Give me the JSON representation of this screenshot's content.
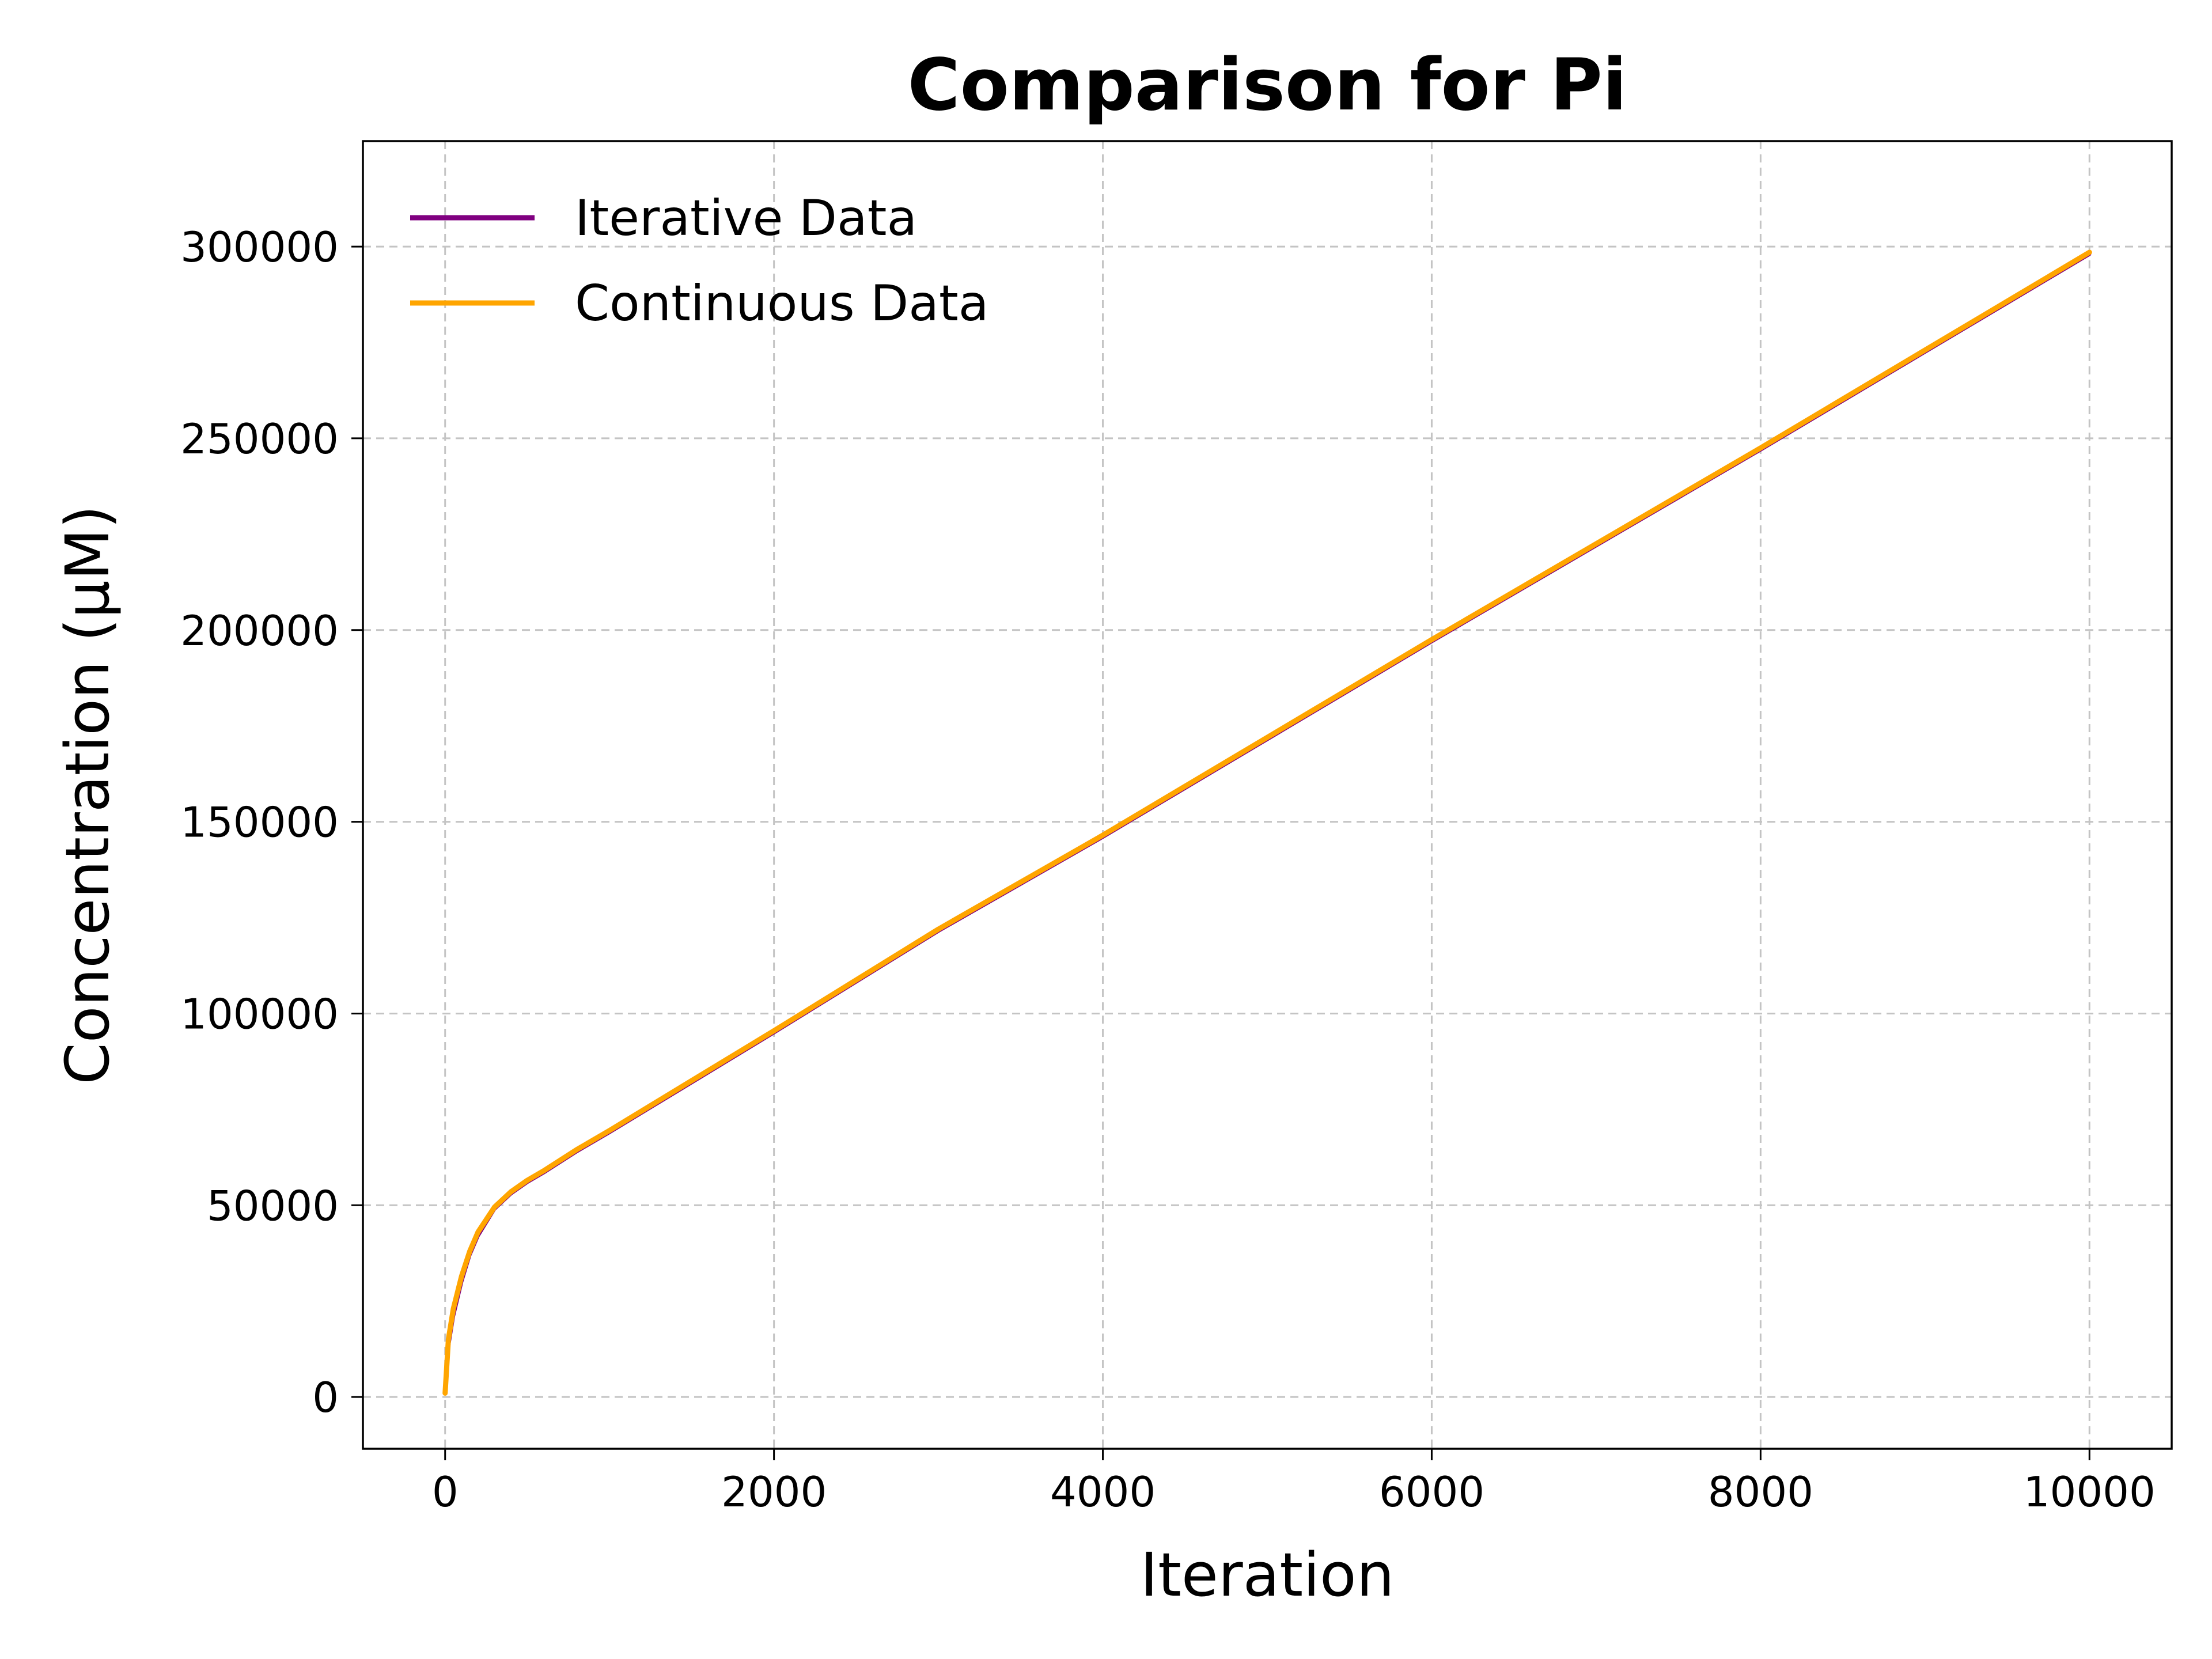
{
  "chart_data": {
    "type": "line",
    "title": "Comparison for Pi",
    "xlabel": "Iteration",
    "ylabel": "Concentration (μM)",
    "xlim": [
      -500,
      10500
    ],
    "ylim": [
      -13500,
      327500
    ],
    "xticks": [
      0,
      2000,
      4000,
      6000,
      8000,
      10000
    ],
    "yticks": [
      0,
      50000,
      100000,
      150000,
      200000,
      250000,
      300000
    ],
    "grid": true,
    "legend_position": "top-left",
    "series": [
      {
        "name": "Iterative Data",
        "color": "#800080",
        "x": [
          0,
          20,
          50,
          100,
          150,
          200,
          300,
          400,
          500,
          600,
          800,
          1000,
          1500,
          2000,
          3000,
          4000,
          5000,
          6000,
          7000,
          8000,
          9000,
          10000
        ],
        "y": [
          1000,
          13000,
          21000,
          30000,
          37000,
          42000,
          49000,
          53000,
          56000,
          58500,
          64000,
          69000,
          82000,
          95000,
          121500,
          146000,
          171500,
          197000,
          222000,
          247000,
          272500,
          298000
        ]
      },
      {
        "name": "Continuous Data",
        "color": "#ffa500",
        "x": [
          0,
          20,
          50,
          100,
          150,
          200,
          300,
          400,
          500,
          600,
          800,
          1000,
          1500,
          2000,
          3000,
          4000,
          5000,
          6000,
          7000,
          8000,
          9000,
          10000
        ],
        "y": [
          1000,
          15000,
          23000,
          31500,
          38000,
          43000,
          49500,
          53500,
          56500,
          59000,
          64500,
          69500,
          82500,
          95500,
          122000,
          146500,
          172000,
          197500,
          222500,
          247500,
          273000,
          298500
        ]
      }
    ]
  }
}
